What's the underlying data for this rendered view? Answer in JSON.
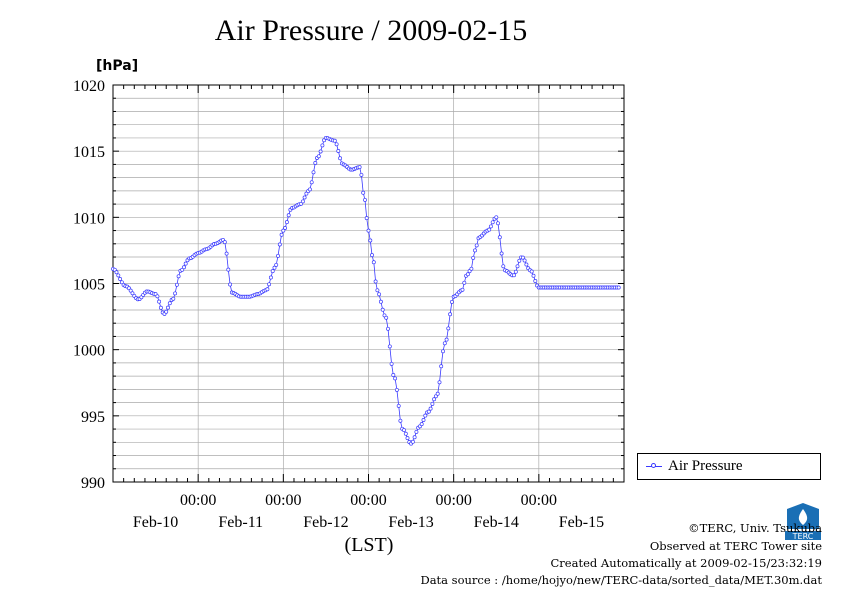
{
  "title": "Air Pressure / 2009-02-15",
  "colors": {
    "series": "#3a3aff",
    "grid": "#aaaaaa",
    "axis": "#000000",
    "logo": "#1a6fb5"
  },
  "legend_label": "Air Pressure",
  "credits": {
    "copyright": "©TERC, Univ. Tsukuba",
    "observed": "Observed at TERC Tower site",
    "created": "Created Automatically at 2009-02-15/23:32:19",
    "source": "Data source : /home/hojyo/new/TERC-data/sorted_data/MET.30m.dat"
  },
  "logo_text": "TERC",
  "chart_data": {
    "type": "line",
    "title": "Air Pressure / 2009-02-15",
    "ylabel": "[hPa]",
    "xlabel": "(LST)",
    "ylim": [
      990,
      1020
    ],
    "xlim": [
      -0.5,
      5.5
    ],
    "y_ticks": [
      "990",
      "995",
      "1000",
      "1005",
      "1010",
      "1015",
      "1020"
    ],
    "y_tick_values": [
      990,
      995,
      1000,
      1005,
      1010,
      1015,
      1020
    ],
    "x_time_labels": [
      "00:00",
      "00:00",
      "00:00",
      "00:00",
      "00:00"
    ],
    "x_time_values": [
      0.5,
      1.5,
      2.5,
      3.5,
      4.5
    ],
    "x_day_labels": [
      "Feb-10",
      "Feb-11",
      "Feb-12",
      "Feb-13",
      "Feb-14",
      "Feb-15"
    ],
    "x_day_values": [
      0,
      1,
      2,
      3,
      4,
      5
    ],
    "grid": true,
    "legend": "right",
    "series": [
      {
        "name": "Air Pressure",
        "x": [
          -0.5,
          -0.35,
          -0.2,
          -0.1,
          0.0,
          0.1,
          0.2,
          0.3,
          0.4,
          0.5,
          0.6,
          0.7,
          0.8,
          0.9,
          1.0,
          1.1,
          1.2,
          1.3,
          1.4,
          1.5,
          1.6,
          1.7,
          1.8,
          1.9,
          2.0,
          2.1,
          2.2,
          2.3,
          2.4,
          2.45,
          2.5,
          2.55,
          2.6,
          2.7,
          2.8,
          2.9,
          3.0,
          3.1,
          3.2,
          3.3,
          3.4,
          3.5,
          3.6,
          3.65,
          3.7,
          3.75,
          3.8,
          3.9,
          4.0,
          4.1,
          4.2,
          4.3,
          4.4,
          4.5,
          4.6,
          4.7,
          4.8,
          4.85,
          4.9,
          5.0,
          5.1,
          5.2,
          5.3,
          5.4,
          5.5
        ],
        "y": [
          1006.1,
          1004.8,
          1003.8,
          1004.4,
          1004.2,
          1002.7,
          1003.8,
          1006.0,
          1006.9,
          1007.3,
          1007.6,
          1008.0,
          1008.3,
          1004.3,
          1004.0,
          1004.0,
          1004.2,
          1004.5,
          1006.2,
          1009.0,
          1010.7,
          1011.0,
          1012.0,
          1014.5,
          1016.0,
          1015.8,
          1014.0,
          1013.6,
          1013.8,
          1011.5,
          1009.0,
          1007.0,
          1004.5,
          1002.5,
          998.0,
          994.0,
          992.9,
          994.2,
          995.3,
          996.5,
          1000.5,
          1004.0,
          1004.5,
          1005.6,
          1006.0,
          1007.5,
          1008.5,
          1009.0,
          1010.0,
          1006.0,
          1005.6,
          1007.0,
          1006.0,
          1004.7,
          1004.7,
          1004.7,
          1004.7,
          1004.7,
          1004.7,
          1004.7,
          1004.7,
          1004.7,
          1004.7,
          1004.7,
          1004.7
        ]
      }
    ]
  }
}
